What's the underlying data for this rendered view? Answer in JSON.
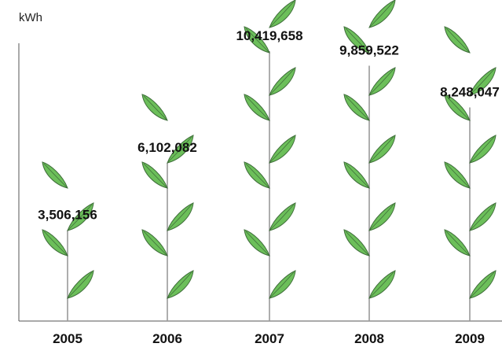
{
  "chart_data": {
    "type": "bar",
    "ylabel": "kWh",
    "categories": [
      "2005",
      "2006",
      "2007",
      "2008",
      "2009"
    ],
    "values": [
      3506156,
      6102082,
      10419658,
      9859522,
      8248047
    ],
    "value_labels": [
      "3,506,156",
      "6,102,082",
      "10,419,658",
      "9,859,522",
      "8,248,047"
    ],
    "leaf_pairs": [
      2,
      3,
      5,
      5,
      4
    ],
    "ylim": [
      0,
      10419658
    ],
    "grid": false,
    "legend": "none"
  },
  "colors": {
    "leaf": "#6cbf5a",
    "leaf_outline": "#3f6e3a",
    "stem": "#9a9a9a",
    "axis": "#555555"
  }
}
